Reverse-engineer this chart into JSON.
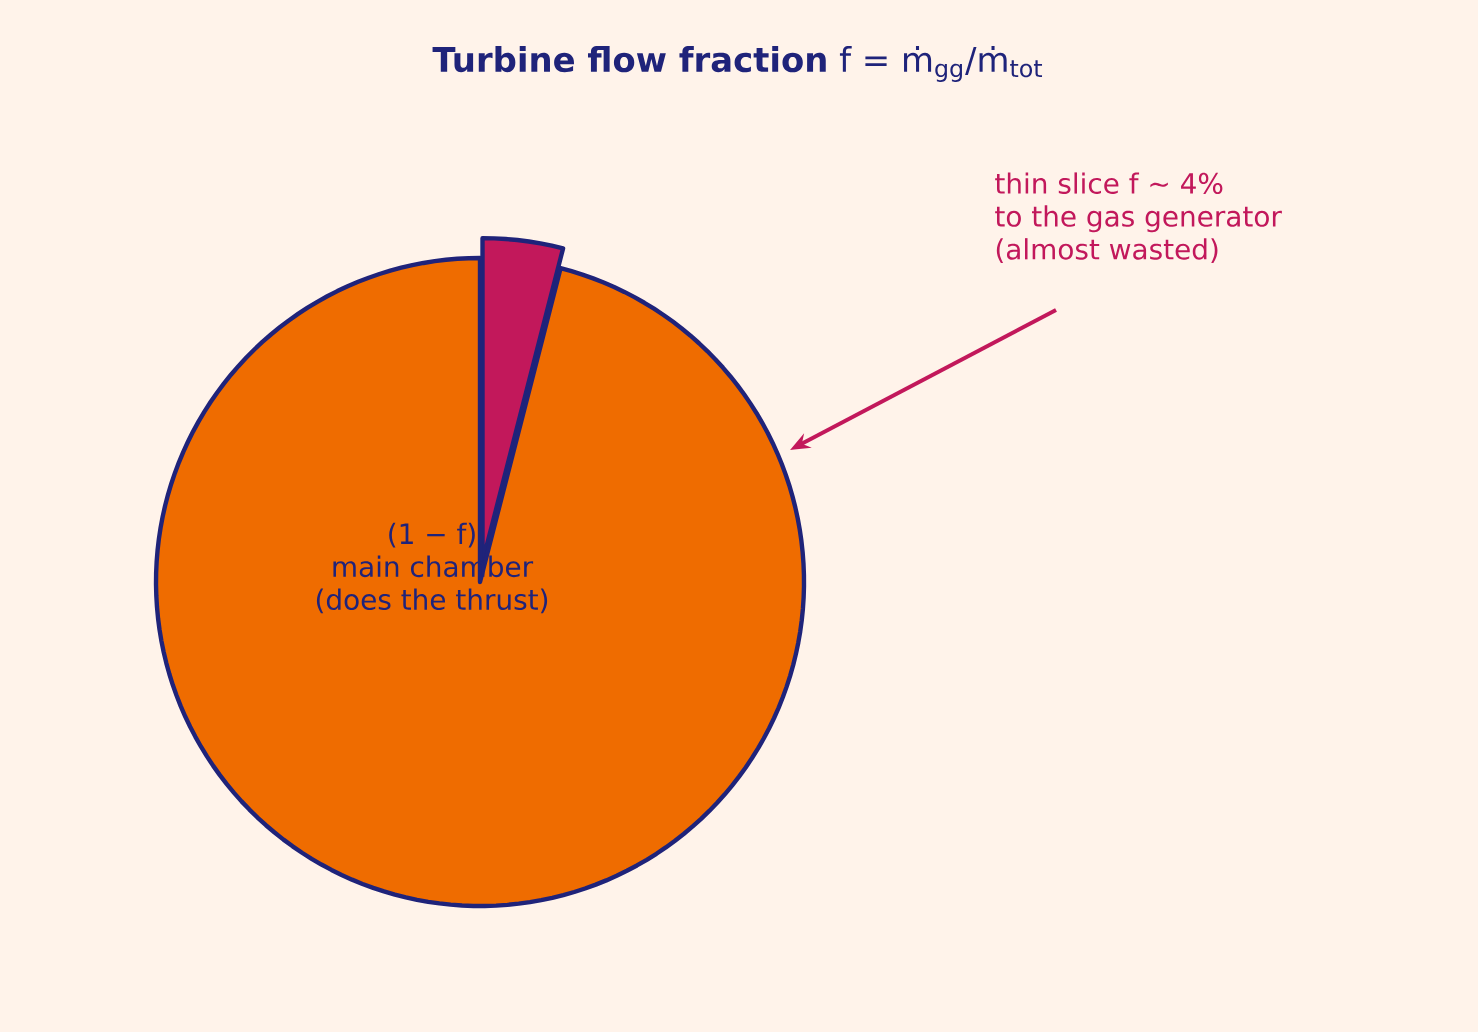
{
  "chart_data": {
    "type": "pie",
    "title": "**Turbine flow fraction**  f = ṁ$_{gg}$/ṁ$_{tot}$",
    "categories": [
      null,
      "(1 − f)\nmain chamber\n(does the thrust)"
    ],
    "annotations": [
      "thin slice  f  ~ 4%\nto the gas generator\n(almost wasted)"
    ],
    "values": [
      4,
      96
    ],
    "colors": [
      "#c2185b",
      "#ef6c00"
    ]
  }
}
